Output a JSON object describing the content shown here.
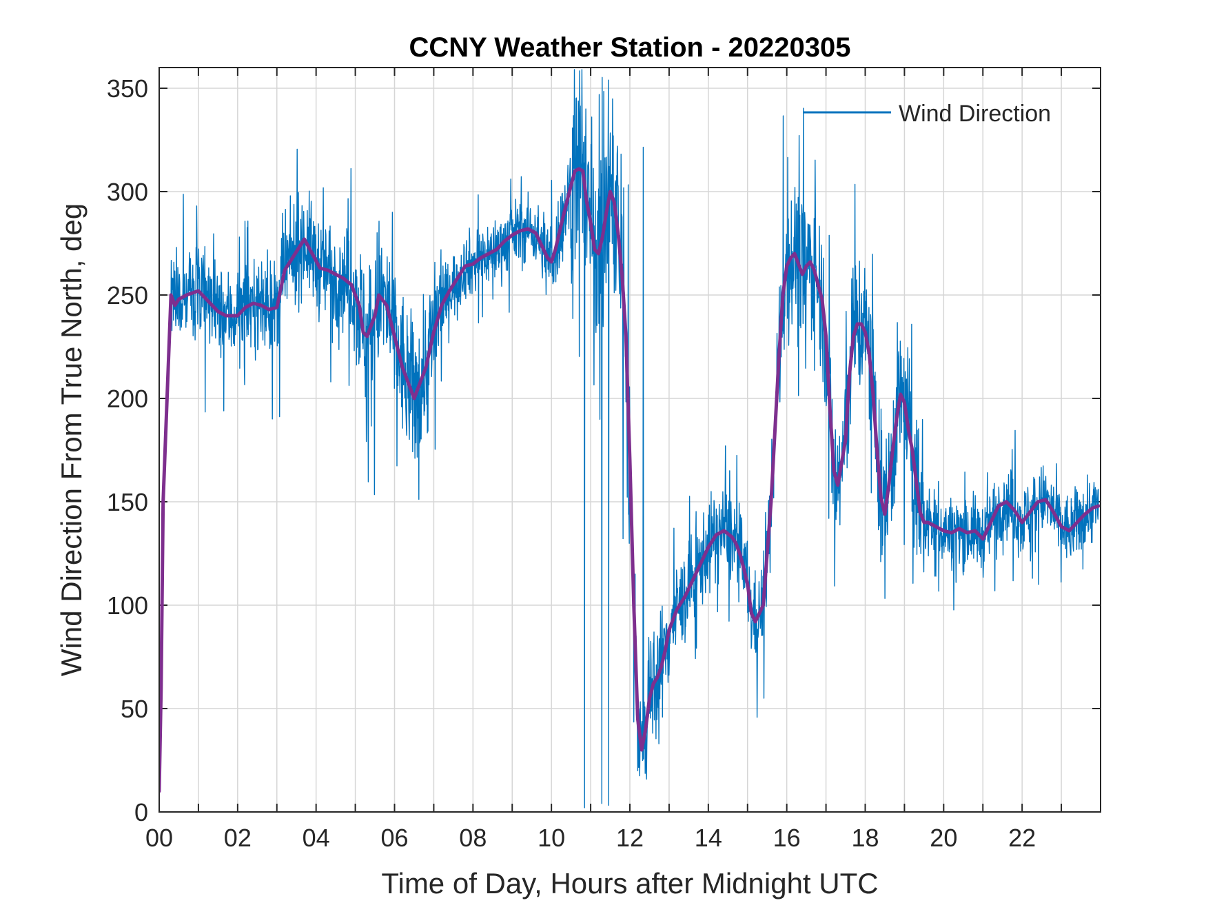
{
  "chart_data": {
    "type": "line",
    "title": "CCNY Weather Station - 20220305",
    "xlabel": "Time of Day, Hours after Midnight UTC",
    "ylabel": "Wind Direction From True North, deg",
    "xlim": [
      0,
      24
    ],
    "ylim": [
      0,
      360
    ],
    "xticks": [
      0,
      1,
      2,
      3,
      4,
      5,
      6,
      7,
      8,
      9,
      10,
      11,
      12,
      13,
      14,
      15,
      16,
      17,
      18,
      19,
      20,
      21,
      22,
      23
    ],
    "xtick_labels": [
      "00",
      "02",
      "04",
      "06",
      "08",
      "10",
      "12",
      "14",
      "16",
      "18",
      "20",
      "22"
    ],
    "xtick_label_values": [
      0,
      2,
      4,
      6,
      8,
      10,
      12,
      14,
      16,
      18,
      20,
      22
    ],
    "yticks": [
      0,
      50,
      100,
      150,
      200,
      250,
      300,
      350
    ],
    "ytick_labels": [
      "0",
      "50",
      "100",
      "150",
      "200",
      "250",
      "300",
      "350"
    ],
    "grid": true,
    "legend": {
      "position": "top-right",
      "entries": [
        "Wind Direction"
      ]
    },
    "series": [
      {
        "name": "Wind Direction",
        "color": "#0072BD",
        "style": "raw-noisy",
        "x": [
          0.0,
          0.05,
          0.1,
          0.2,
          0.3,
          0.4,
          0.5,
          0.7,
          1.0,
          1.2,
          1.5,
          1.7,
          2.0,
          2.2,
          2.4,
          2.6,
          2.8,
          3.0,
          3.2,
          3.4,
          3.7,
          3.9,
          4.1,
          4.3,
          4.5,
          4.7,
          4.9,
          5.1,
          5.2,
          5.3,
          5.5,
          5.6,
          5.8,
          6.0,
          6.2,
          6.4,
          6.5,
          6.6,
          6.8,
          7.0,
          7.2,
          7.4,
          7.6,
          7.8,
          8.0,
          8.2,
          8.4,
          8.6,
          8.8,
          9.0,
          9.2,
          9.4,
          9.6,
          9.8,
          9.9,
          10.0,
          10.1,
          10.3,
          10.5,
          10.6,
          10.7,
          10.8,
          10.9,
          11.0,
          11.1,
          11.2,
          11.3,
          11.4,
          11.5,
          11.6,
          11.7,
          11.8,
          11.9,
          12.0,
          12.1,
          12.2,
          12.3,
          12.4,
          12.5,
          12.6,
          12.7,
          12.8,
          12.9,
          13.0,
          13.2,
          13.4,
          13.6,
          13.8,
          14.0,
          14.2,
          14.4,
          14.6,
          14.7,
          14.8,
          14.9,
          15.0,
          15.1,
          15.2,
          15.4,
          15.6,
          15.8,
          15.9,
          16.0,
          16.1,
          16.2,
          16.3,
          16.4,
          16.5,
          16.6,
          16.7,
          16.8,
          16.9,
          17.0,
          17.1,
          17.2,
          17.3,
          17.5,
          17.6,
          17.7,
          17.8,
          17.9,
          18.0,
          18.1,
          18.2,
          18.3,
          18.4,
          18.5,
          18.6,
          18.7,
          18.8,
          18.9,
          19.0,
          19.1,
          19.2,
          19.3,
          19.4,
          19.5,
          19.6,
          19.8,
          20.0,
          20.2,
          20.4,
          20.6,
          20.8,
          21.0,
          21.2,
          21.4,
          21.6,
          21.8,
          22.0,
          22.2,
          22.4,
          22.6,
          22.8,
          23.0,
          23.2,
          23.4,
          23.6,
          23.8,
          23.95
        ],
        "y": [
          10,
          60,
          150,
          200,
          250,
          245,
          248,
          250,
          252,
          248,
          242,
          240,
          240,
          244,
          246,
          245,
          243,
          244,
          262,
          268,
          277,
          270,
          263,
          262,
          260,
          258,
          255,
          245,
          232,
          230,
          240,
          250,
          245,
          230,
          215,
          205,
          200,
          205,
          215,
          232,
          245,
          252,
          258,
          264,
          265,
          268,
          270,
          272,
          276,
          279,
          281,
          282,
          280,
          272,
          268,
          266,
          272,
          288,
          303,
          310,
          311,
          310,
          295,
          285,
          272,
          270,
          278,
          290,
          300,
          295,
          280,
          260,
          230,
          170,
          100,
          45,
          30,
          40,
          55,
          62,
          65,
          70,
          78,
          88,
          98,
          104,
          112,
          120,
          128,
          134,
          136,
          133,
          130,
          125,
          118,
          110,
          96,
          92,
          100,
          150,
          220,
          250,
          264,
          268,
          270,
          265,
          260,
          264,
          266,
          262,
          255,
          248,
          230,
          195,
          165,
          158,
          180,
          212,
          230,
          236,
          236,
          232,
          222,
          202,
          175,
          152,
          144,
          158,
          175,
          190,
          202,
          198,
          185,
          175,
          160,
          145,
          140,
          140,
          138,
          136,
          135,
          137,
          135,
          136,
          132,
          140,
          148,
          150,
          146,
          140,
          145,
          150,
          151,
          145,
          138,
          136,
          140,
          144,
          147,
          148
        ]
      }
    ]
  }
}
